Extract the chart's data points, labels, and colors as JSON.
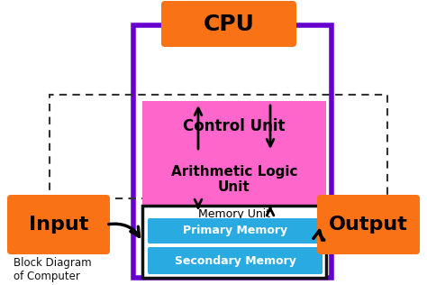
{
  "bg_color": "#ffffff",
  "cpu_label": "CPU",
  "cpu_box_color": "#f97316",
  "cpu_border_color": "#6600cc",
  "control_unit_label": "Control Unit",
  "control_unit_color": "#ff66cc",
  "alu_label": "Arithmetic Logic\nUnit",
  "alu_color": "#ff66cc",
  "memory_unit_label": "Memory Unit",
  "memory_border_color": "#111111",
  "primary_memory_label": "Primary Memory",
  "primary_memory_color": "#29abe2",
  "secondary_memory_label": "Secondary Memory",
  "secondary_memory_color": "#29abe2",
  "input_label": "Input",
  "input_color": "#f97316",
  "output_label": "Output",
  "output_color": "#f97316",
  "caption_line1": "Block Diagram",
  "caption_line2": "of Computer",
  "caption_color": "#111111",
  "dashed_color": "#333333"
}
